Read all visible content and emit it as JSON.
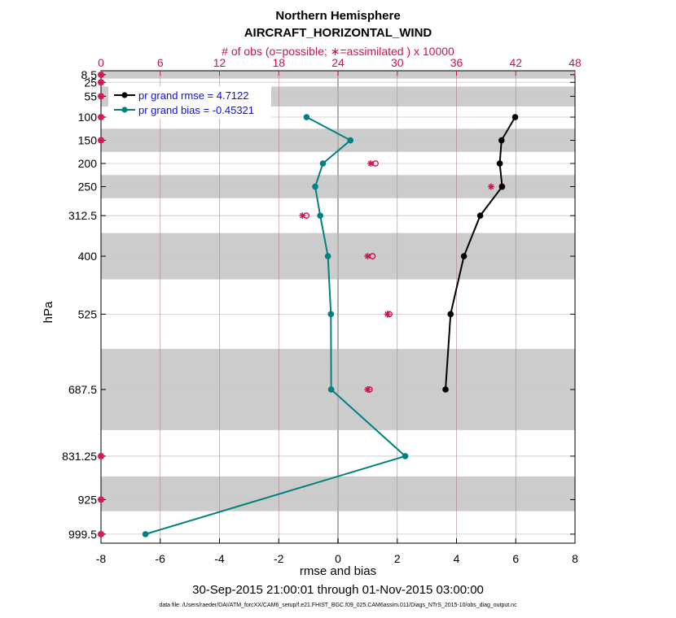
{
  "chart_data": {
    "type": "line",
    "title": "Northern Hemisphere",
    "subtitle": "AIRCRAFT_HORIZONTAL_WIND",
    "top_axis_label": "# of obs (o=possible; ∗=assimilated ) x 10000",
    "xlabel": "rmse and bias",
    "ylabel": "hPa",
    "date_range": "30-Sep-2015 21:00:01 through 01-Nov-2015 03:00:00",
    "datafile": "data file: /Users/raeder/DAI/ATM_forcXX/CAM6_setup/f.e21.FHIST_BGC.f09_025.CAM6assim.011/Diags_NTrS_2015-10/obs_diag_output.nc",
    "xlim": [
      -8,
      8
    ],
    "x_ticks": [
      -8,
      -6,
      -4,
      -2,
      0,
      2,
      4,
      6,
      8
    ],
    "obs_lim": [
      0,
      48
    ],
    "obs_ticks": [
      0,
      6,
      12,
      18,
      24,
      30,
      36,
      42,
      48
    ],
    "ylim": [
      1019,
      0
    ],
    "levels": [
      8.5,
      25,
      55,
      100,
      150,
      200,
      250,
      312.5,
      400,
      525,
      687.5,
      831.25,
      925,
      999.5
    ],
    "level_labels": [
      "8.5",
      "25",
      "55",
      "100",
      "150",
      "200",
      "250",
      "312.5",
      "400",
      "525",
      "687.5",
      "831.25",
      "925",
      "999.5"
    ],
    "bands": [
      [
        0,
        17
      ],
      [
        34,
        77
      ],
      [
        125,
        175
      ],
      [
        225,
        275
      ],
      [
        350,
        450
      ],
      [
        600,
        775
      ],
      [
        875,
        950
      ]
    ],
    "series": [
      {
        "name": "pr grand rmse = 4.7122",
        "color": "#000000",
        "levels": [
          100,
          150,
          200,
          250,
          312.5,
          400,
          525,
          687.5
        ],
        "values": [
          5.98,
          5.52,
          5.46,
          5.54,
          4.8,
          4.25,
          3.8,
          3.63
        ]
      },
      {
        "name": "pr grand bias = -0.45321",
        "color": "#008080",
        "levels": [
          100,
          150,
          200,
          250,
          312.5,
          400,
          525,
          687.5,
          831.25,
          999.5
        ],
        "values": [
          -1.06,
          0.42,
          -0.51,
          -0.77,
          -0.6,
          -0.34,
          -0.24,
          -0.23,
          2.27,
          -6.5
        ]
      }
    ],
    "obs_possible": [
      {
        "level": 8.5,
        "count": 0
      },
      {
        "level": 25,
        "count": 0
      },
      {
        "level": 55,
        "count": 0
      },
      {
        "level": 100,
        "count": 0
      },
      {
        "level": 150,
        "count": 0
      },
      {
        "level": 200,
        "count": 27.8
      },
      {
        "level": 250,
        "count": 40.6
      },
      {
        "level": 312.5,
        "count": 20.8
      },
      {
        "level": 400,
        "count": 27.5
      },
      {
        "level": 525,
        "count": 29.2
      },
      {
        "level": 687.5,
        "count": 27.2
      },
      {
        "level": 831.25,
        "count": 0
      },
      {
        "level": 925,
        "count": 0
      },
      {
        "level": 999.5,
        "count": 0
      }
    ],
    "obs_assimilated": [
      {
        "level": 8.5,
        "count": 0
      },
      {
        "level": 25,
        "count": 0
      },
      {
        "level": 55,
        "count": 0
      },
      {
        "level": 100,
        "count": 0
      },
      {
        "level": 150,
        "count": 0
      },
      {
        "level": 200,
        "count": 27.3
      },
      {
        "level": 250,
        "count": 39.5
      },
      {
        "level": 312.5,
        "count": 20.4
      },
      {
        "level": 400,
        "count": 27.0
      },
      {
        "level": 525,
        "count": 29.0
      },
      {
        "level": 687.5,
        "count": 27.0
      },
      {
        "level": 831.25,
        "count": 0
      },
      {
        "level": 925,
        "count": 0
      },
      {
        "level": 999.5,
        "count": 0
      }
    ]
  },
  "colors": {
    "obs": "#d0114f",
    "band": "#cccccc",
    "grid": "#c8c8c8",
    "obs_grid": "#b08098",
    "zero_line": "#b0b0b0"
  }
}
